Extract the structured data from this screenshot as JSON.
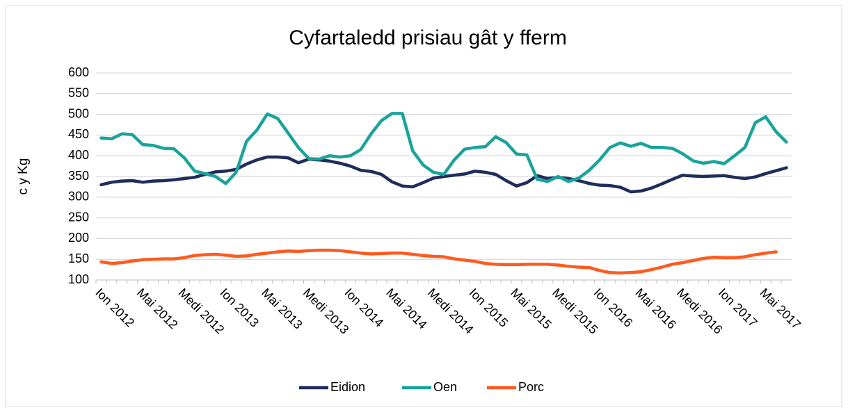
{
  "chart_data": {
    "type": "line",
    "title": "Cyfartaledd prisiau gât y fferm",
    "y_label": "c y Kg",
    "categories": [
      "Ion 2012",
      null,
      null,
      null,
      "Mai 2012",
      null,
      null,
      null,
      "Medi 2012",
      null,
      null,
      null,
      "Ion 2013",
      null,
      null,
      null,
      "Mai 2013",
      null,
      null,
      null,
      "Medi 2013",
      null,
      null,
      null,
      "Ion 2014",
      null,
      null,
      null,
      "Mai 2014",
      null,
      null,
      null,
      "Medi 2014",
      null,
      null,
      null,
      "Ion 2015",
      null,
      null,
      null,
      "Mai 2015",
      null,
      null,
      null,
      "Medi 2015",
      null,
      null,
      null,
      "Ion 2016",
      null,
      null,
      null,
      "Mai 2016",
      null,
      null,
      null,
      "Medi 2016",
      null,
      null,
      null,
      "Ion 2017",
      null,
      null,
      null,
      "Mai 2017",
      null,
      null
    ],
    "series": [
      {
        "name": "Eidion",
        "color": "#1f2d5c",
        "values": [
          330,
          336,
          339,
          340,
          336,
          339,
          340,
          342,
          345,
          348,
          355,
          361,
          363,
          367,
          380,
          390,
          397,
          397,
          395,
          383,
          392,
          390,
          387,
          382,
          375,
          365,
          362,
          355,
          337,
          327,
          325,
          335,
          346,
          350,
          353,
          356,
          363,
          360,
          355,
          340,
          327,
          335,
          352,
          345,
          348,
          345,
          340,
          333,
          329,
          328,
          324,
          313,
          315,
          322,
          332,
          343,
          353,
          351,
          350,
          351,
          352,
          348,
          345,
          349,
          357,
          364,
          371
        ]
      },
      {
        "name": "Oen",
        "color": "#1aa39a",
        "values": [
          443,
          441,
          453,
          451,
          427,
          425,
          418,
          417,
          395,
          363,
          357,
          350,
          333,
          360,
          435,
          462,
          501,
          490,
          455,
          420,
          393,
          392,
          400,
          397,
          400,
          415,
          453,
          485,
          502,
          502,
          412,
          378,
          360,
          355,
          390,
          416,
          420,
          422,
          446,
          432,
          404,
          402,
          343,
          338,
          350,
          338,
          346,
          365,
          390,
          420,
          431,
          423,
          430,
          420,
          420,
          418,
          405,
          388,
          382,
          386,
          381,
          400,
          420,
          480,
          494,
          458,
          433
        ]
      },
      {
        "name": "Porc",
        "color": "#ff5a1f",
        "values": [
          144,
          140,
          142,
          146,
          149,
          150,
          151,
          151,
          154,
          159,
          161,
          162,
          160,
          157,
          158,
          162,
          165,
          168,
          170,
          169,
          171,
          172,
          172,
          171,
          168,
          165,
          163,
          164,
          165,
          165,
          162,
          159,
          157,
          156,
          151,
          148,
          145,
          140,
          138,
          137,
          137,
          138,
          138,
          138,
          136,
          133,
          131,
          130,
          123,
          118,
          117,
          118,
          120,
          125,
          131,
          138,
          142,
          147,
          152,
          155,
          154,
          154,
          156,
          161,
          165,
          168,
          null
        ]
      }
    ],
    "ylim": [
      100,
      600
    ],
    "yticks": [
      100,
      150,
      200,
      250,
      300,
      350,
      400,
      450,
      500,
      550,
      600
    ],
    "grid": true,
    "legend": "bottom"
  }
}
